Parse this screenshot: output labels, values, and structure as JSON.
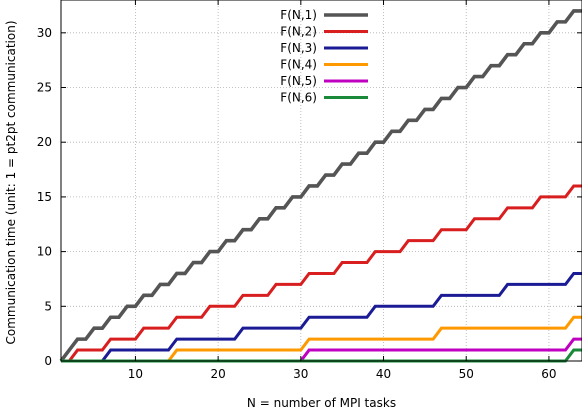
{
  "chart_data": {
    "type": "line",
    "title": "",
    "xlabel": "N = number of MPI tasks",
    "ylabel": "Communication time (unit: 1 = pt2pt communication)",
    "xlim": [
      1,
      64
    ],
    "ylim": [
      0,
      33
    ],
    "xticks": [
      10,
      20,
      30,
      40,
      50,
      60
    ],
    "yticks": [
      0,
      5,
      10,
      15,
      20,
      25,
      30
    ],
    "grid": true,
    "legend_position": "top-center",
    "series": [
      {
        "name": "F(N,1)",
        "color": "#555555",
        "kind": "step",
        "start": 1,
        "period": 2,
        "offset": 0,
        "width": 3.6
      },
      {
        "name": "F(N,2)",
        "color": "#d81e1e",
        "kind": "step",
        "start": 3,
        "period": 4,
        "offset": 0,
        "width": 3.0
      },
      {
        "name": "F(N,3)",
        "color": "#1b1b96",
        "kind": "step",
        "start": 7,
        "period": 8,
        "offset": 0,
        "width": 3.0
      },
      {
        "name": "F(N,4)",
        "color": "#ff9900",
        "kind": "step",
        "start": 15,
        "period": 16,
        "offset": 0,
        "width": 3.0
      },
      {
        "name": "F(N,5)",
        "color": "#c000c0",
        "kind": "step",
        "start": 31,
        "period": 32,
        "offset": 0,
        "width": 3.0
      },
      {
        "name": "F(N,6)",
        "color": "#1a8a3a",
        "kind": "step",
        "start": 63,
        "period": 64,
        "offset": 0,
        "width": 3.0
      }
    ]
  }
}
